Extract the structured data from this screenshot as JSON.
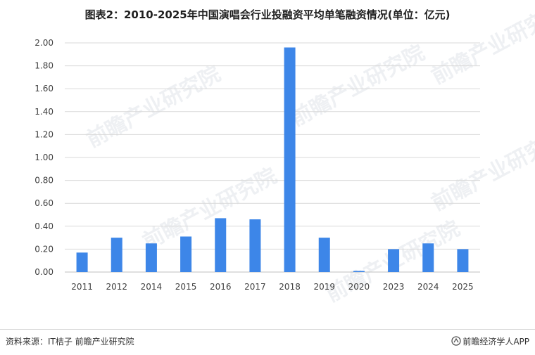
{
  "title": "图表2：2010-2025年中国演唱会行业投融资平均单笔融资情况(单位：亿元)",
  "source": "资料来源：IT桔子 前瞻产业研究院",
  "brand": "前瞻经济学人APP",
  "watermark": "前瞻产业研究院",
  "colors": {
    "bar": "#3d86e8",
    "grid": "#d9d9d9",
    "axis": "#bfbfbf"
  },
  "chart_data": {
    "type": "bar",
    "title": "图表2：2010-2025年中国演唱会行业投融资平均单笔融资情况(单位：亿元)",
    "categories": [
      "2011",
      "2012",
      "2014",
      "2015",
      "2016",
      "2017",
      "2018",
      "2019",
      "2020",
      "2023",
      "2024",
      "2025"
    ],
    "values": [
      0.17,
      0.3,
      0.25,
      0.31,
      0.47,
      0.46,
      1.96,
      0.3,
      0.01,
      0.2,
      0.25,
      0.2
    ],
    "yticks": [
      "0.00",
      "0.20",
      "0.40",
      "0.60",
      "0.80",
      "1.00",
      "1.20",
      "1.40",
      "1.60",
      "1.80",
      "2.00"
    ],
    "ylim": [
      0,
      2.0
    ],
    "grid": true,
    "legend": "none",
    "xlabel": "",
    "ylabel": ""
  }
}
